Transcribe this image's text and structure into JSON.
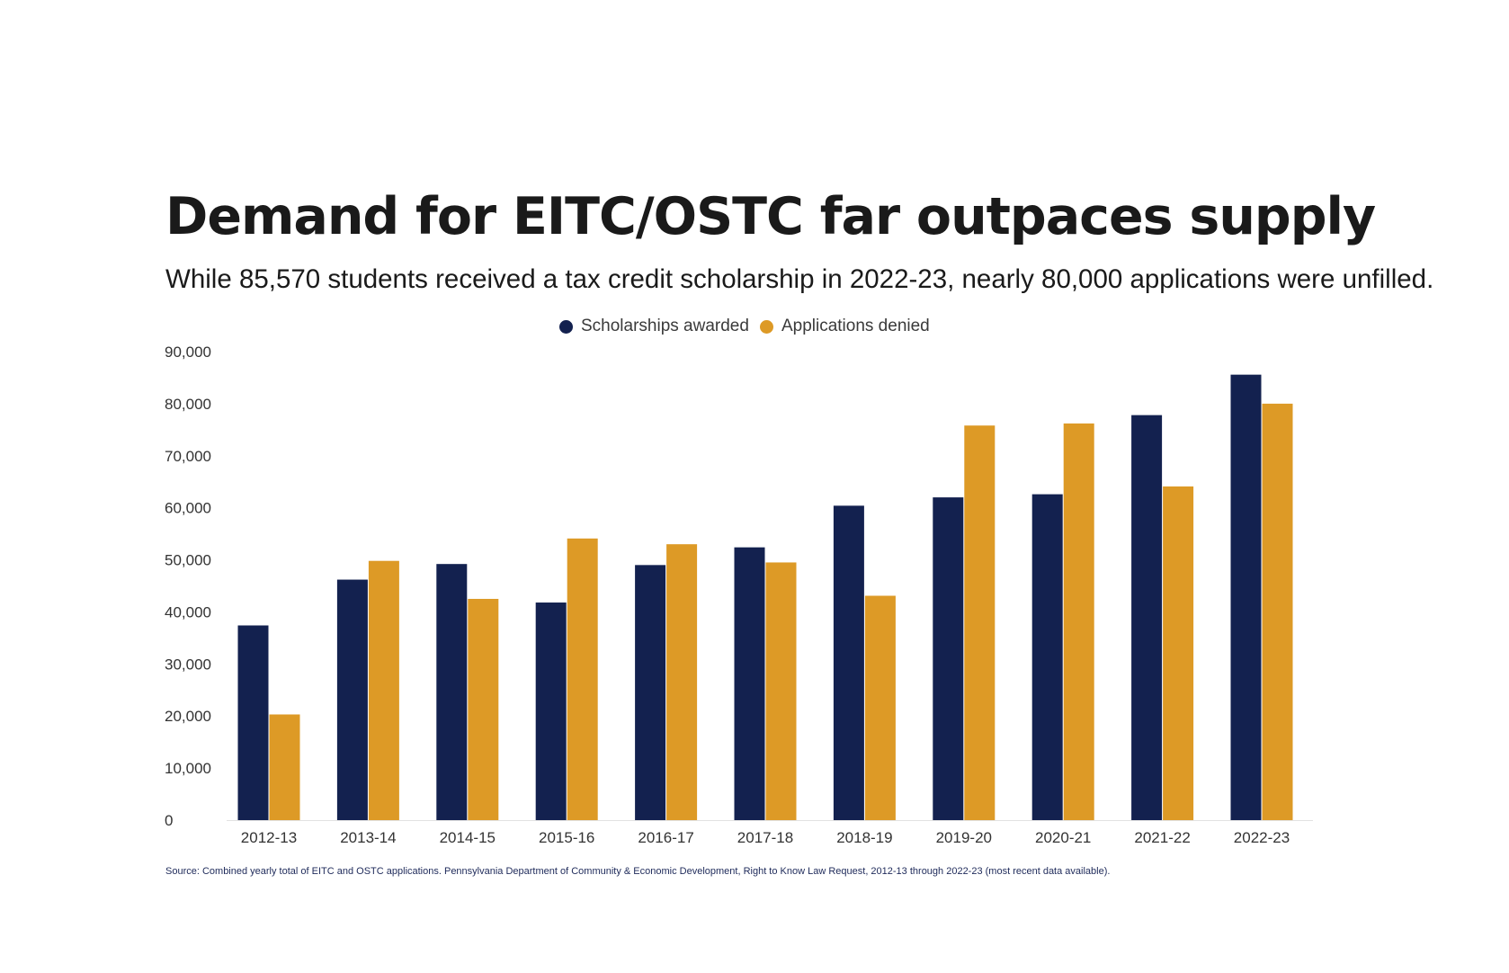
{
  "colors": {
    "scholarships": "#13214f",
    "denied": "#dd9a26",
    "baseline": "#e2e2e2",
    "source_text": "#1e2a5a"
  },
  "legend": {
    "scholarships_label": "Scholarships awarded",
    "denied_label": "Applications denied",
    "scholarships_icon": "navy-circle-icon",
    "denied_icon": "gold-circle-icon"
  },
  "source": "Source: Combined yearly total of EITC and OSTC applications. Pennsylvania Department of Community & Economic Development, Right to Know Law Request, 2012-13 through 2022-23 (most recent data available).",
  "chart_data": {
    "type": "bar",
    "title": "Demand for EITC/OSTC far outpaces supply",
    "subtitle": "While 85,570 students received a tax credit scholarship in 2022-23, nearly 80,000 applications were unfilled.",
    "xlabel": "",
    "ylabel": "",
    "ylim": [
      0,
      90000
    ],
    "yticks": [
      0,
      10000,
      20000,
      30000,
      40000,
      50000,
      60000,
      70000,
      80000,
      90000
    ],
    "ytick_labels": [
      "0",
      "10,000",
      "20,000",
      "30,000",
      "40,000",
      "50,000",
      "60,000",
      "70,000",
      "80,000",
      "90,000"
    ],
    "grid": false,
    "legend_position": "top-center",
    "categories": [
      "2012-13",
      "2013-14",
      "2014-15",
      "2015-16",
      "2016-17",
      "2017-18",
      "2018-19",
      "2019-20",
      "2020-21",
      "2021-22",
      "2022-23"
    ],
    "series": [
      {
        "name": "Scholarships awarded",
        "values": [
          37400,
          46200,
          49200,
          41800,
          49000,
          52400,
          60400,
          62000,
          62600,
          77800,
          85570
        ]
      },
      {
        "name": "Applications denied",
        "values": [
          20300,
          49800,
          42500,
          54100,
          53000,
          49500,
          43100,
          75800,
          76200,
          64100,
          80000
        ]
      }
    ]
  }
}
